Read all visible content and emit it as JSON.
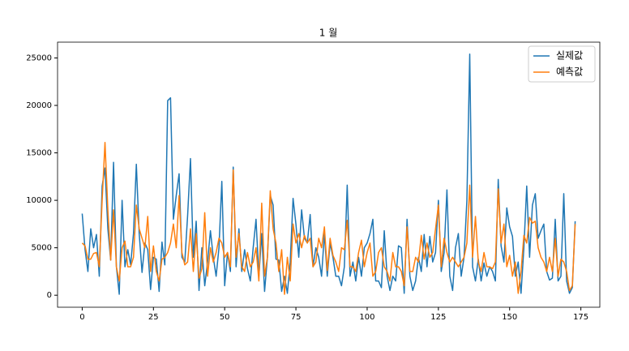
{
  "chart_data": {
    "type": "line",
    "title": "1 월",
    "x": [
      0,
      1,
      2,
      3,
      4,
      5,
      6,
      7,
      8,
      9,
      10,
      11,
      12,
      13,
      14,
      15,
      16,
      17,
      18,
      19,
      20,
      21,
      22,
      23,
      24,
      25,
      26,
      27,
      28,
      29,
      30,
      31,
      32,
      33,
      34,
      35,
      36,
      37,
      38,
      39,
      40,
      41,
      42,
      43,
      44,
      45,
      46,
      47,
      48,
      49,
      50,
      51,
      52,
      53,
      54,
      55,
      56,
      57,
      58,
      59,
      60,
      61,
      62,
      63,
      64,
      65,
      66,
      67,
      68,
      69,
      70,
      71,
      72,
      73,
      74,
      75,
      76,
      77,
      78,
      79,
      80,
      81,
      82,
      83,
      84,
      85,
      86,
      87,
      88,
      89,
      90,
      91,
      92,
      93,
      94,
      95,
      96,
      97,
      98,
      99,
      100,
      101,
      102,
      103,
      104,
      105,
      106,
      107,
      108,
      109,
      110,
      111,
      112,
      113,
      114,
      115,
      116,
      117,
      118,
      119,
      120,
      121,
      122,
      123,
      124,
      125,
      126,
      127,
      128,
      129,
      130,
      131,
      132,
      133,
      134,
      135,
      136,
      137,
      138,
      139,
      140,
      141,
      142,
      143,
      144,
      145,
      146,
      147,
      148,
      149,
      150,
      151,
      152,
      153,
      154,
      155,
      156,
      157,
      158,
      159,
      160,
      161,
      162,
      163,
      164,
      165,
      166,
      167,
      168,
      169,
      170,
      171,
      172,
      173
    ],
    "series": [
      {
        "name": "실제값",
        "color": "#1f77b4",
        "values": [
          8600,
          4800,
          2500,
          7000,
          5000,
          6400,
          2000,
          11500,
          13400,
          7000,
          3700,
          14000,
          3000,
          100,
          10000,
          3000,
          4800,
          3200,
          6500,
          13800,
          6500,
          2400,
          5500,
          4800,
          600,
          4000,
          3800,
          400,
          5600,
          3200,
          20500,
          20800,
          8000,
          10500,
          12800,
          4000,
          3500,
          8400,
          14400,
          4000,
          7800,
          500,
          5000,
          1000,
          3500,
          6800,
          4000,
          2000,
          5000,
          12000,
          1000,
          4500,
          2500,
          13500,
          3000,
          7000,
          2500,
          4800,
          2800,
          1500,
          5000,
          8000,
          2000,
          6500,
          400,
          4000,
          10500,
          9500,
          3800,
          3700,
          400,
          2000,
          200,
          3500,
          10200,
          7500,
          4000,
          9000,
          6000,
          5500,
          8500,
          3000,
          5000,
          4000,
          2000,
          6500,
          2000,
          5500,
          4000,
          2000,
          2000,
          1000,
          3000,
          11600,
          2000,
          3500,
          1500,
          4000,
          2000,
          5000,
          5500,
          6500,
          8000,
          1500,
          1500,
          800,
          6800,
          2000,
          500,
          2000,
          1500,
          5200,
          5000,
          200,
          8000,
          2000,
          500,
          1500,
          4000,
          2500,
          6400,
          3000,
          6200,
          3500,
          4500,
          10000,
          2500,
          4500,
          11100,
          2000,
          500,
          5000,
          6500,
          2000,
          4000,
          10000,
          25400,
          3000,
          1500,
          3800,
          1500,
          3400,
          2000,
          3000,
          2500,
          1500,
          12200,
          5200,
          3500,
          9200,
          7200,
          6200,
          2000,
          3500,
          200,
          5000,
          11500,
          4000,
          9500,
          10700,
          6000,
          6800,
          7500,
          2500,
          1600,
          1800,
          8000,
          1500,
          2000,
          10700,
          1500,
          200,
          800,
          7800
        ]
      },
      {
        "name": "예측값",
        "color": "#ff7f0e",
        "values": [
          5500,
          5200,
          3800,
          3800,
          4400,
          4500,
          3000,
          10000,
          16100,
          9000,
          3700,
          9000,
          3000,
          1500,
          5000,
          5700,
          3000,
          3000,
          4000,
          9500,
          7000,
          6000,
          5000,
          8300,
          2500,
          5200,
          2500,
          1500,
          3800,
          4000,
          4500,
          5500,
          7500,
          5000,
          10500,
          4500,
          3200,
          3500,
          7000,
          2500,
          6500,
          1800,
          2800,
          8700,
          2000,
          5000,
          3500,
          4500,
          6000,
          5500,
          4000,
          4500,
          3000,
          13200,
          4000,
          6500,
          3000,
          2500,
          4500,
          3000,
          3500,
          5000,
          1500,
          9700,
          2000,
          4000,
          11000,
          7000,
          5500,
          2500,
          4800,
          100,
          4000,
          1500,
          7500,
          5500,
          6500,
          5000,
          6300,
          5500,
          6000,
          3000,
          3500,
          6000,
          5000,
          7200,
          2600,
          6000,
          4200,
          3500,
          2500,
          5000,
          4800,
          7900,
          3000,
          3000,
          2500,
          4500,
          5800,
          3000,
          4500,
          5500,
          2000,
          2500,
          4500,
          5000,
          3000,
          2500,
          1500,
          4500,
          3000,
          3000,
          2500,
          1000,
          7200,
          2500,
          2500,
          4000,
          3500,
          6300,
          3800,
          5500,
          4000,
          4500,
          7000,
          9500,
          3000,
          6000,
          4500,
          3500,
          4000,
          3500,
          3000,
          3500,
          4000,
          5500,
          11600,
          4000,
          8300,
          3500,
          2500,
          4500,
          3000,
          3000,
          2800,
          3500,
          11200,
          5500,
          7500,
          3000,
          4200,
          2000,
          3500,
          200,
          2500,
          6300,
          5500,
          8200,
          7600,
          7800,
          5000,
          4000,
          3500,
          2500,
          4000,
          2500,
          6000,
          2000,
          3800,
          3500,
          2500,
          500,
          1000,
          7500
        ]
      }
    ],
    "xlim": [
      -8.65,
      181.65
    ],
    "ylim": [
      -1265,
      26665
    ],
    "xticks": [
      0,
      25,
      50,
      75,
      100,
      125,
      150,
      175
    ],
    "yticks": [
      0,
      5000,
      10000,
      15000,
      20000,
      25000
    ],
    "legend": "upper right"
  }
}
